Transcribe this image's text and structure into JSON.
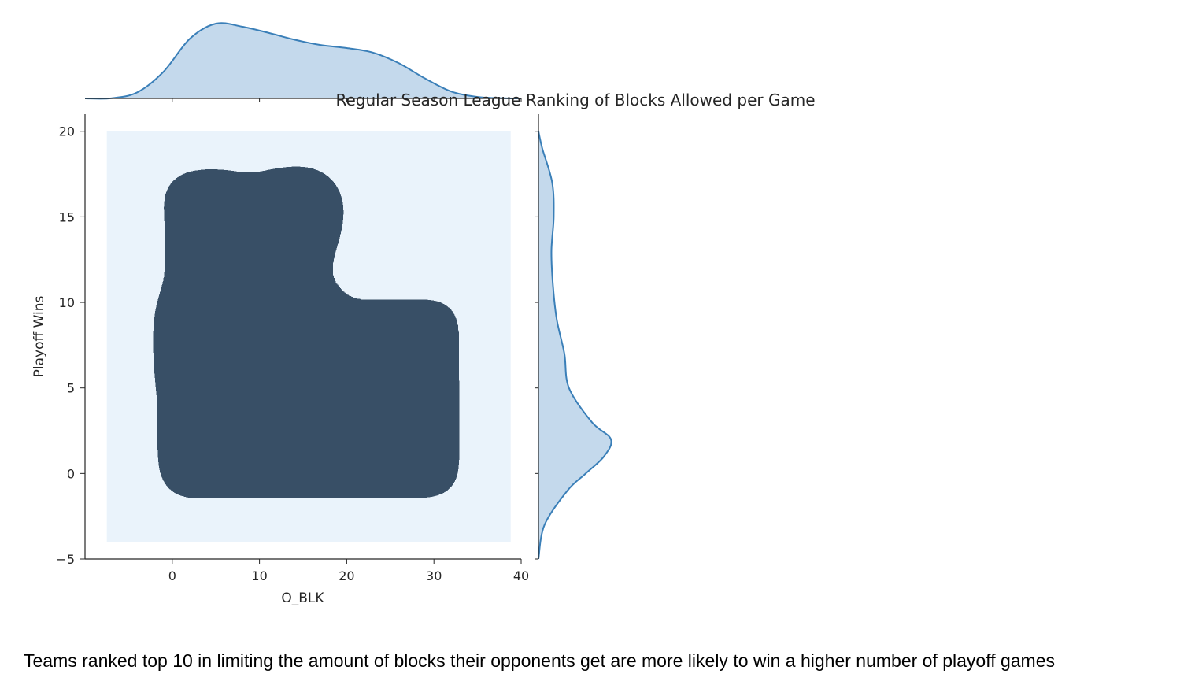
{
  "caption": "Teams ranked top 10 in limiting the amount of blocks their opponents get are more likely to win a higher number of playoff games",
  "colors": {
    "line": "#3a7fb8",
    "marginal_fill": "#c4d9ec",
    "levels": [
      "#eaf3fb",
      "#c0dcf1",
      "#94c4e6",
      "#62a8dc",
      "#3a8fd6",
      "#2272b8",
      "#185d94",
      "#173f66",
      "#0b1523"
    ],
    "axis": "#262626"
  },
  "chart_data": {
    "type": "kde-jointplot",
    "title": "Regular Season League Ranking of Blocks Allowed per Game",
    "xlabel": "O_BLK",
    "ylabel": "Playoff Wins",
    "xlim": [
      -10,
      40
    ],
    "ylim": [
      -5,
      21
    ],
    "x_ticks": [
      0,
      10,
      20,
      30,
      40
    ],
    "y_ticks": [
      -5,
      0,
      5,
      10,
      15,
      20
    ],
    "x_tick_labels": [
      "0",
      "10",
      "20",
      "30",
      "40"
    ],
    "y_tick_labels": [
      "−5",
      "0",
      "5",
      "10",
      "15",
      "20"
    ],
    "joint_kde_bounds": {
      "x": [
        -7.5,
        38.8
      ],
      "y": [
        -4,
        20
      ]
    },
    "joint_kde_modes": [
      {
        "x": 8,
        "y": 2,
        "relative_density": 1.0
      },
      {
        "x": 22,
        "y": 1.5,
        "relative_density": 0.8
      },
      {
        "x": 5,
        "y": 16,
        "relative_density": 0.3
      },
      {
        "x": 14,
        "y": 15.3,
        "relative_density": 0.25
      }
    ],
    "x_marginal_density": {
      "x": [
        -10,
        -7,
        -4,
        -1,
        2,
        5,
        8,
        11,
        14,
        17,
        20,
        23,
        26,
        29,
        32,
        35,
        38,
        40
      ],
      "density": [
        0.0,
        0.002,
        0.08,
        0.35,
        0.78,
        0.98,
        0.94,
        0.86,
        0.77,
        0.7,
        0.66,
        0.6,
        0.46,
        0.26,
        0.09,
        0.02,
        0.003,
        0.0
      ]
    },
    "y_marginal_density": {
      "y": [
        -5,
        -3,
        -1,
        0,
        1,
        2,
        3,
        5,
        7,
        9,
        11,
        13,
        15,
        17,
        19,
        20
      ],
      "density": [
        0.0,
        0.08,
        0.38,
        0.62,
        0.86,
        0.95,
        0.7,
        0.4,
        0.34,
        0.24,
        0.19,
        0.17,
        0.2,
        0.18,
        0.05,
        0.0
      ]
    }
  }
}
